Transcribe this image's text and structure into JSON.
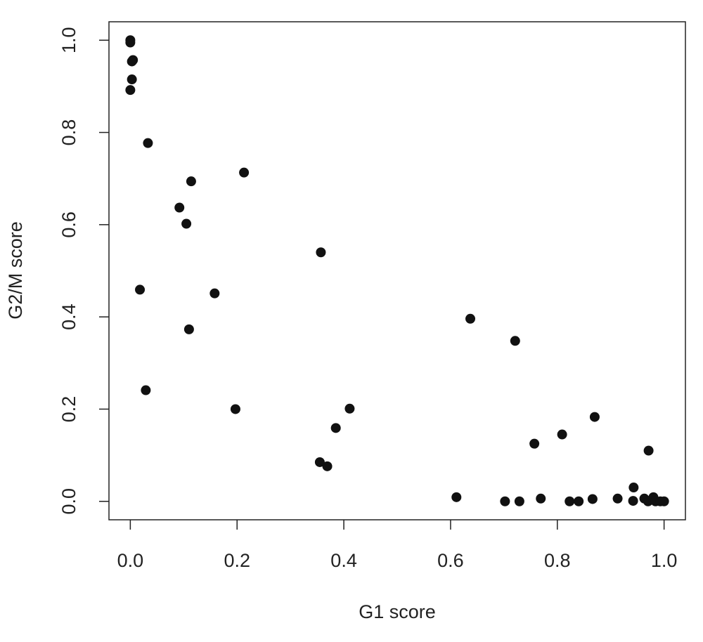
{
  "chart_data": {
    "type": "scatter",
    "x_label": "G1 score",
    "y_label": "G2/M score",
    "color": "#111111",
    "x": [
      0.0,
      0.0,
      0.005,
      0.003,
      0.003,
      0.0,
      0.033,
      0.213,
      0.114,
      0.092,
      0.105,
      0.357,
      0.018,
      0.158,
      0.11,
      0.637,
      0.721,
      0.029,
      0.197,
      0.411,
      0.385,
      0.355,
      0.369,
      0.87,
      0.757,
      0.809,
      0.971,
      0.943,
      0.611,
      0.702,
      0.729,
      0.769,
      0.823,
      0.84,
      0.866,
      0.913,
      0.942,
      0.963,
      0.97,
      0.98,
      0.984,
      0.993,
      1.0
    ],
    "values": [
      1.0,
      0.995,
      0.957,
      0.954,
      0.915,
      0.892,
      0.777,
      0.713,
      0.694,
      0.637,
      0.602,
      0.54,
      0.459,
      0.451,
      0.373,
      0.396,
      0.348,
      0.241,
      0.2,
      0.201,
      0.159,
      0.085,
      0.076,
      0.183,
      0.125,
      0.145,
      0.11,
      0.03,
      0.009,
      0.0,
      0.0,
      0.006,
      0.0,
      0.0,
      0.005,
      0.006,
      0.001,
      0.006,
      0.0,
      0.009,
      0.0,
      0.0,
      0.0
    ],
    "xlim": [
      -0.04,
      1.04
    ],
    "ylim": [
      -0.04,
      1.04
    ],
    "xticks": [
      {
        "value": 0,
        "label": "0.0"
      },
      0.2,
      0.4,
      0.6,
      0.8,
      {
        "value": 1,
        "label": "1.0"
      }
    ],
    "yticks": [
      {
        "value": 0,
        "label": "0.0"
      },
      0.2,
      0.4,
      0.6,
      0.8,
      {
        "value": 1,
        "label": "1.0"
      }
    ]
  }
}
